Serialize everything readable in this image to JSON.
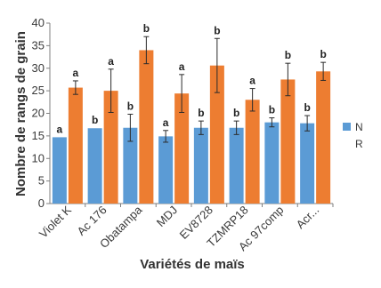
{
  "chart_data": {
    "type": "bar",
    "title": "",
    "xlabel": "Variétés de maïs",
    "ylabel": "Nombre de rangs de grain",
    "ylim": [
      0,
      40
    ],
    "yticks": [
      0,
      5,
      10,
      15,
      20,
      25,
      30,
      35,
      40
    ],
    "grid": false,
    "legend_position": "right",
    "categories": [
      "Violet K",
      "Ac 176",
      "Obatampa",
      "MDJ",
      "EV8728",
      "TZMRP18",
      "Ac 97comp",
      "Acr..."
    ],
    "series": [
      {
        "name": "N",
        "color": "#5b9bd5",
        "values": [
          14.7,
          16.7,
          16.8,
          14.9,
          16.8,
          16.8,
          18.0,
          17.8
        ],
        "errors": [
          0.0,
          0.0,
          3.0,
          1.3,
          1.5,
          1.5,
          1.0,
          1.7
        ],
        "labels": [
          "a",
          "b",
          "b",
          "a",
          "b",
          "b",
          "b",
          "b"
        ]
      },
      {
        "name": "R",
        "color": "#ed7d31",
        "values": [
          25.7,
          25.0,
          34.0,
          24.4,
          30.6,
          23.0,
          27.5,
          29.3
        ],
        "errors": [
          1.5,
          4.8,
          3.0,
          4.2,
          6.0,
          2.5,
          3.6,
          2.0
        ],
        "labels": [
          "a",
          "a",
          "b",
          "a",
          "b",
          "a",
          "b",
          "b"
        ]
      }
    ]
  }
}
